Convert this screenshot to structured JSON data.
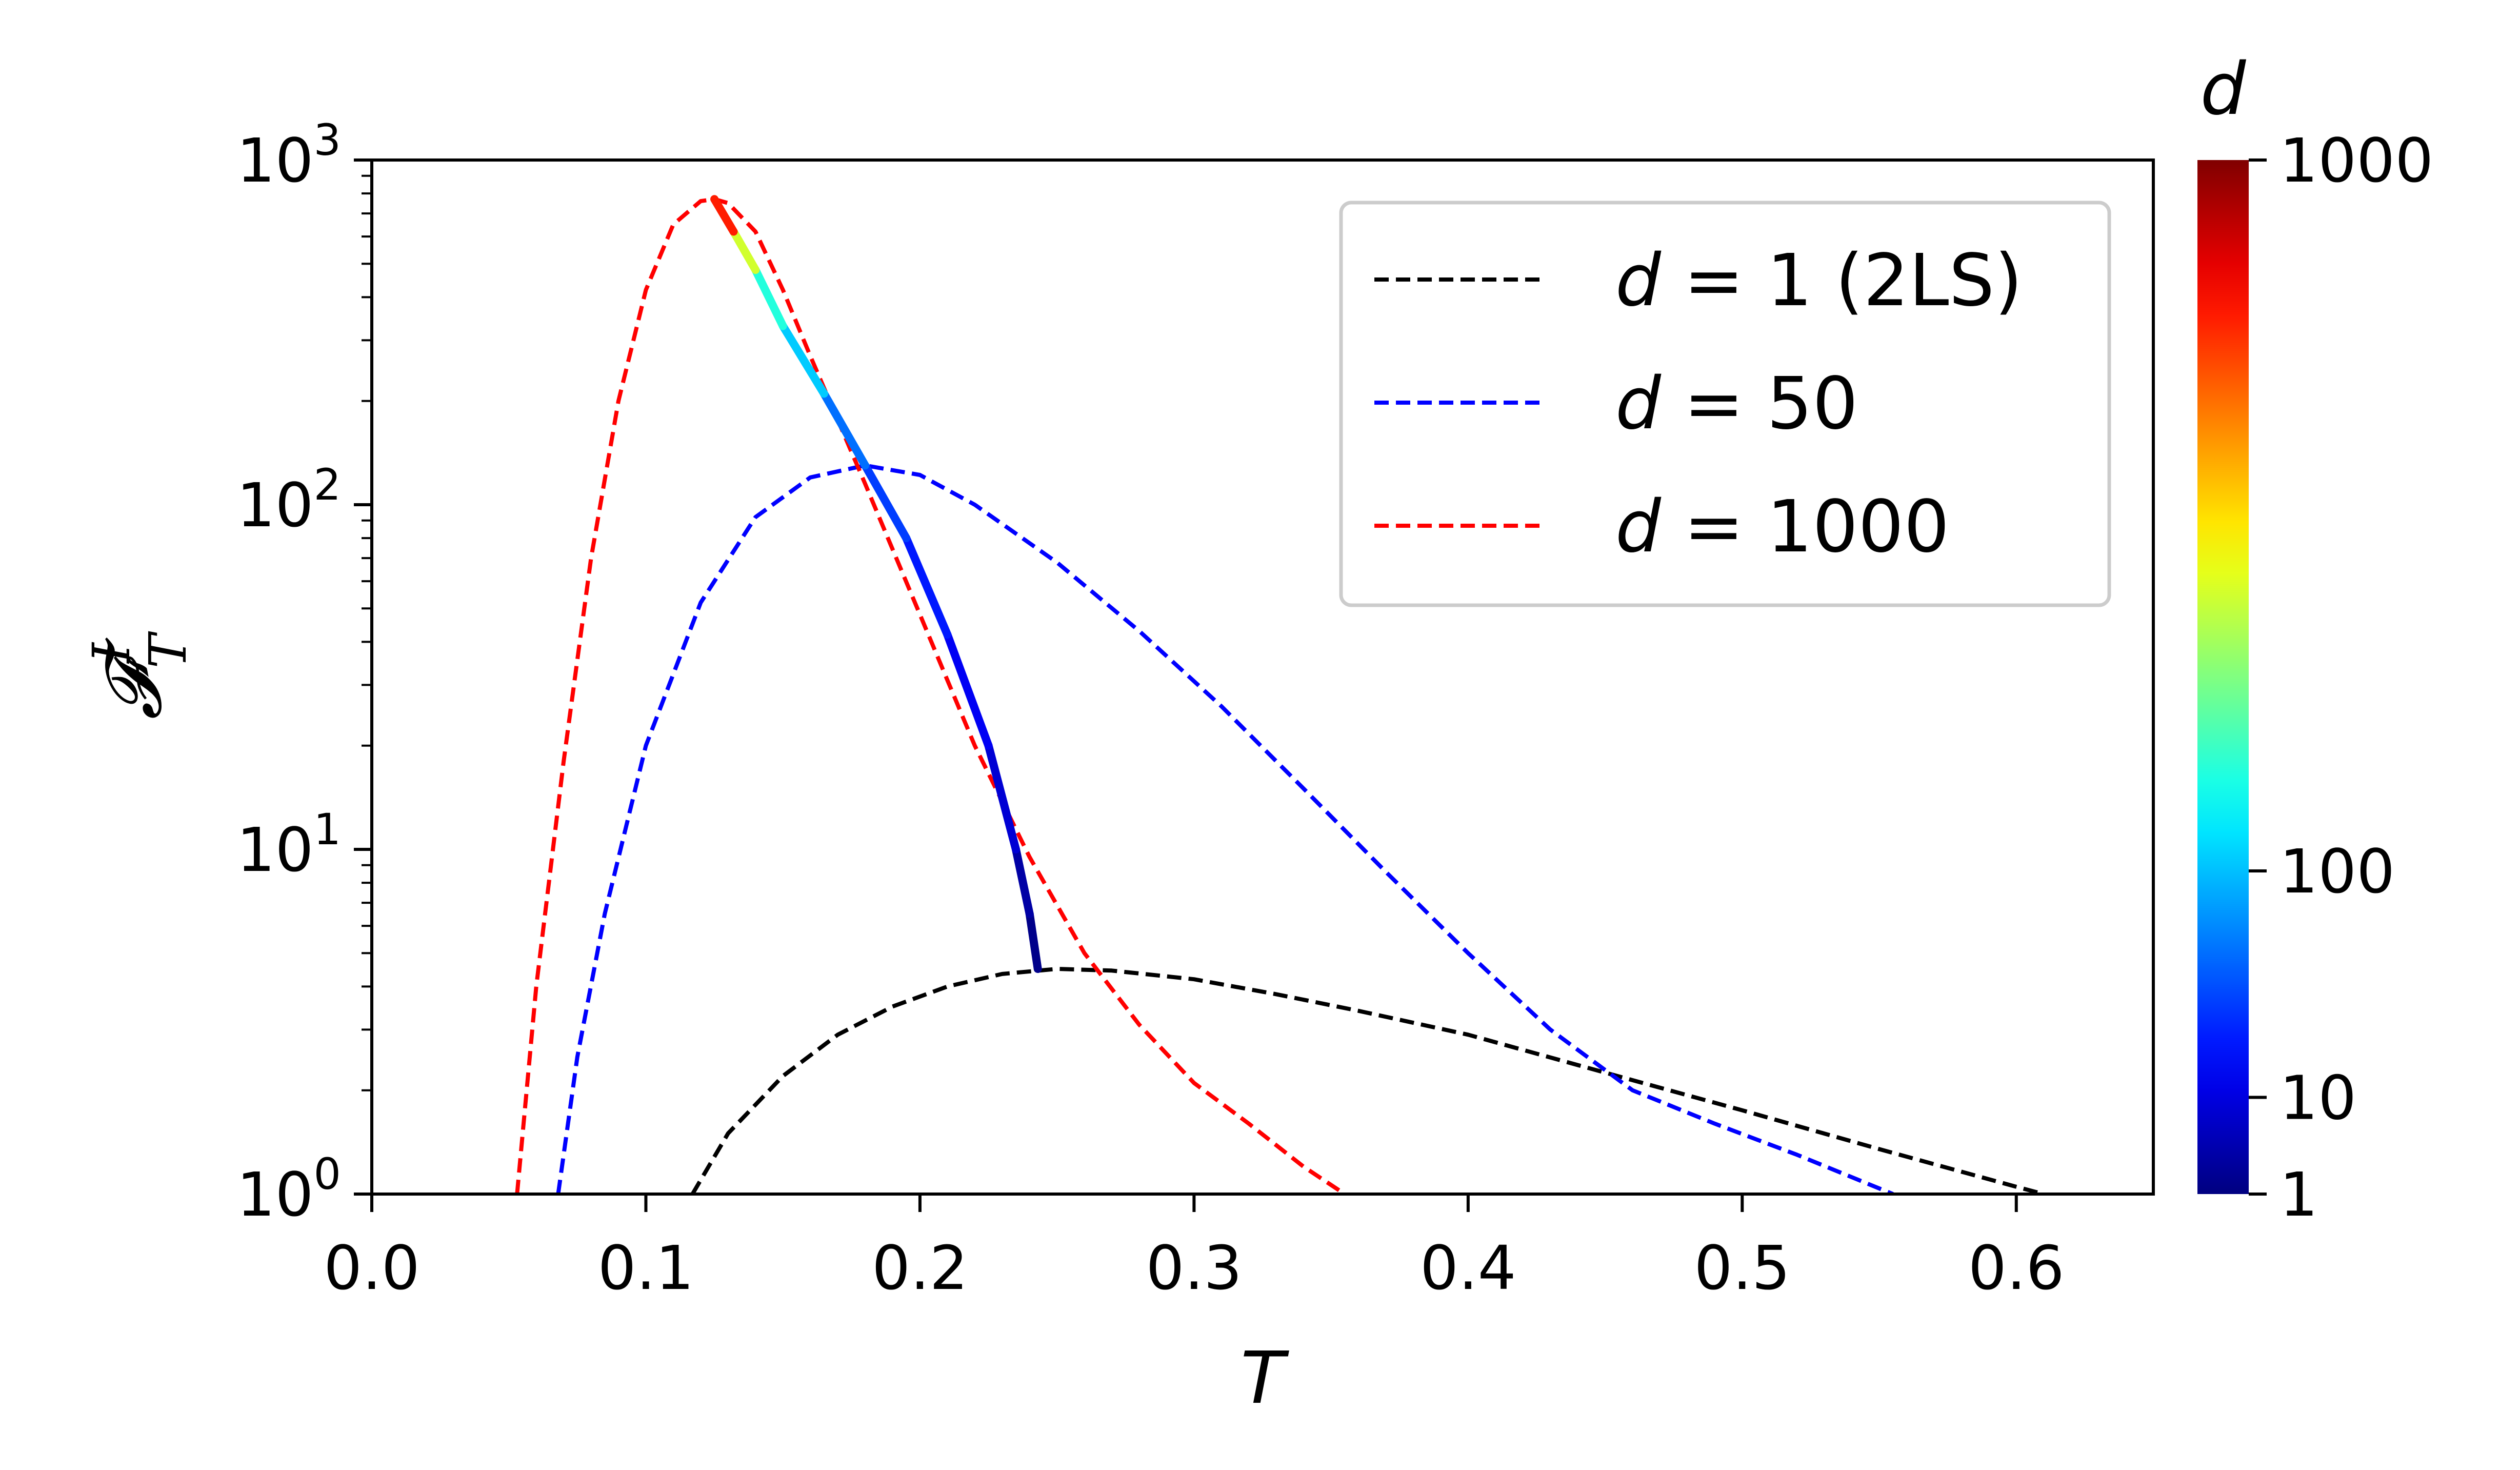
{
  "chart_data": {
    "type": "line",
    "xlabel": "T",
    "ylabel": "𝓕",
    "ylabel_superscript": "I",
    "ylabel_subscript": "T",
    "xlim": [
      0.0,
      0.65
    ],
    "ylim": [
      1,
      1000
    ],
    "yscale": "log",
    "grid": false,
    "legend_position": "top-right",
    "x_ticks": [
      "0.0",
      "0.1",
      "0.2",
      "0.3",
      "0.4",
      "0.5",
      "0.6"
    ],
    "x_tick_values": [
      0.0,
      0.1,
      0.2,
      0.3,
      0.4,
      0.5,
      0.6
    ],
    "y_ticks": [
      {
        "base": "10",
        "exp": "0",
        "value": 1
      },
      {
        "base": "10",
        "exp": "1",
        "value": 10
      },
      {
        "base": "10",
        "exp": "2",
        "value": 100
      },
      {
        "base": "10",
        "exp": "3",
        "value": 1000
      }
    ],
    "series": [
      {
        "name": "d = 1 (2LS)",
        "legend_prefix": "d",
        "legend_eq": " = ",
        "legend_value": "1 (2LS)",
        "color": "#000000",
        "style": "dashed",
        "x": [
          0.117,
          0.13,
          0.15,
          0.17,
          0.19,
          0.21,
          0.23,
          0.25,
          0.27,
          0.3,
          0.33,
          0.36,
          0.4,
          0.45,
          0.5,
          0.55,
          0.6,
          0.61
        ],
        "y": [
          1.0,
          1.5,
          2.2,
          2.9,
          3.5,
          4.0,
          4.35,
          4.5,
          4.45,
          4.2,
          3.8,
          3.4,
          2.9,
          2.25,
          1.75,
          1.35,
          1.05,
          1.0
        ]
      },
      {
        "name": "d = 50",
        "legend_prefix": "d",
        "legend_eq": " = ",
        "legend_value": "50",
        "color": "#0000ff",
        "style": "dashed",
        "x": [
          0.068,
          0.075,
          0.085,
          0.1,
          0.12,
          0.14,
          0.16,
          0.18,
          0.2,
          0.22,
          0.25,
          0.28,
          0.31,
          0.34,
          0.37,
          0.4,
          0.43,
          0.46,
          0.49,
          0.52,
          0.555
        ],
        "y": [
          1.0,
          2.5,
          6.5,
          20,
          52,
          92,
          120,
          130,
          122,
          100,
          68,
          43,
          26,
          15,
          8.6,
          5.0,
          3.0,
          2.0,
          1.6,
          1.3,
          1.0
        ]
      },
      {
        "name": "d = 1000",
        "legend_prefix": "d",
        "legend_eq": " = ",
        "legend_value": "1000",
        "color": "#ff0000",
        "style": "dashed",
        "x": [
          0.053,
          0.06,
          0.07,
          0.08,
          0.09,
          0.1,
          0.11,
          0.12,
          0.125,
          0.13,
          0.14,
          0.15,
          0.16,
          0.18,
          0.2,
          0.22,
          0.24,
          0.26,
          0.28,
          0.3,
          0.32,
          0.34,
          0.355
        ],
        "y": [
          1.0,
          4.0,
          18,
          70,
          200,
          420,
          650,
          760,
          770,
          750,
          620,
          420,
          270,
          115,
          48,
          20,
          9.5,
          5.0,
          3.1,
          2.1,
          1.6,
          1.2,
          1.0
        ]
      }
    ],
    "peak_curve": {
      "description_color_by": "d",
      "T": [
        0.243,
        0.24,
        0.235,
        0.225,
        0.21,
        0.195,
        0.18,
        0.165,
        0.15,
        0.14,
        0.132,
        0.125
      ],
      "F": [
        4.5,
        6.5,
        10,
        20,
        42,
        80,
        130,
        210,
        330,
        480,
        620,
        770
      ],
      "d": [
        1,
        3,
        6,
        12,
        25,
        40,
        55,
        80,
        150,
        300,
        600,
        1000
      ]
    },
    "colorbar": {
      "label": "d",
      "ticks": [
        {
          "label": "1",
          "value": 1
        },
        {
          "label": "10",
          "value": 10
        },
        {
          "label": "100",
          "value": 100
        },
        {
          "label": "1000",
          "value": 1000
        }
      ],
      "colormap": "jet"
    }
  }
}
